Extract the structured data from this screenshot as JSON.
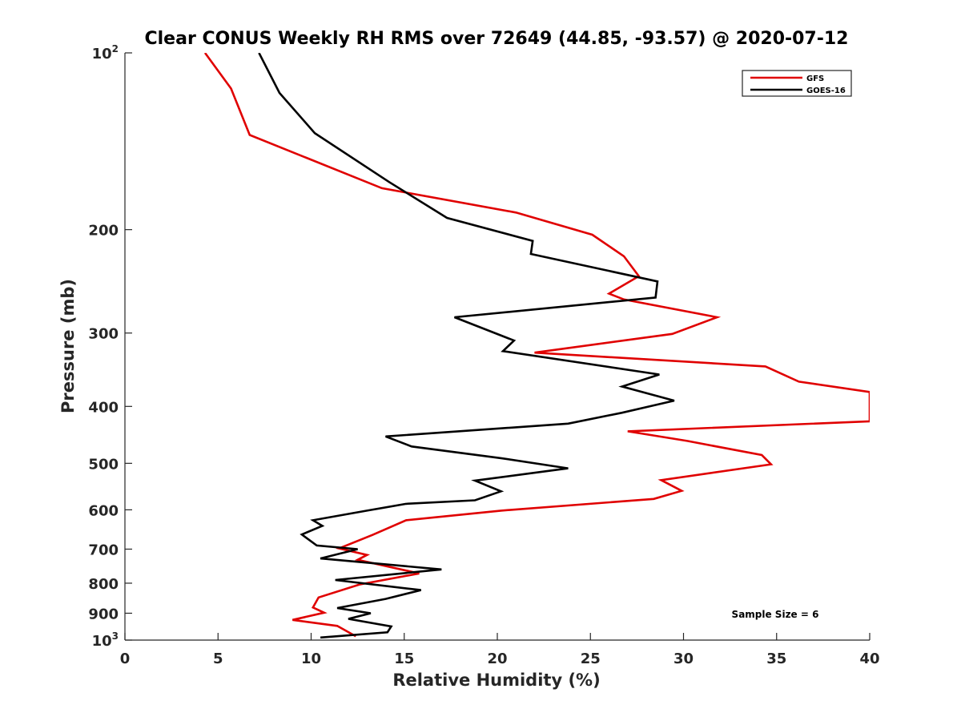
{
  "chart_data": {
    "type": "line",
    "title": "Clear CONUS Weekly RH RMS over 72649 (44.85, -93.57) @ 2020-07-12",
    "xlabel": "Relative Humidity (%)",
    "ylabel": "Pressure (mb)",
    "xlim": [
      0,
      40
    ],
    "ylim": [
      100,
      1000
    ],
    "y_scale": "log",
    "y_reversed": true,
    "x_ticks": [
      "0",
      "5",
      "10",
      "15",
      "20",
      "25",
      "30",
      "35",
      "40"
    ],
    "y_ticks": [
      {
        "value": 100,
        "base": "10",
        "exp": "2"
      },
      {
        "value": 200,
        "base": "200",
        "exp": ""
      },
      {
        "value": 300,
        "base": "300",
        "exp": ""
      },
      {
        "value": 400,
        "base": "400",
        "exp": ""
      },
      {
        "value": 500,
        "base": "500",
        "exp": ""
      },
      {
        "value": 600,
        "base": "600",
        "exp": ""
      },
      {
        "value": 700,
        "base": "700",
        "exp": ""
      },
      {
        "value": 800,
        "base": "800",
        "exp": ""
      },
      {
        "value": 900,
        "base": "900",
        "exp": ""
      },
      {
        "value": 1000,
        "base": "10",
        "exp": "3"
      }
    ],
    "grid": false,
    "legend_position": "top-right",
    "annotation": "Sample Size = 6",
    "series": [
      {
        "name": "GFS",
        "color": "#e00000",
        "points": [
          [
            4.3,
            100
          ],
          [
            5.7,
            115
          ],
          [
            6.7,
            138
          ],
          [
            13.8,
            170
          ],
          [
            21.0,
            187
          ],
          [
            25.1,
            204
          ],
          [
            26.8,
            222
          ],
          [
            27.6,
            240
          ],
          [
            26.0,
            257
          ],
          [
            26.8,
            263
          ],
          [
            31.8,
            282
          ],
          [
            29.4,
            301
          ],
          [
            22.0,
            324
          ],
          [
            34.4,
            342
          ],
          [
            36.2,
            363
          ],
          [
            40.0,
            378
          ],
          [
            40.0,
            424
          ],
          [
            27.0,
            441
          ],
          [
            30.2,
            458
          ],
          [
            34.2,
            484
          ],
          [
            34.7,
            502
          ],
          [
            28.8,
            534
          ],
          [
            29.9,
            557
          ],
          [
            28.4,
            575
          ],
          [
            20.2,
            602
          ],
          [
            15.1,
            625
          ],
          [
            13.3,
            662
          ],
          [
            11.5,
            698
          ],
          [
            13.0,
            716
          ],
          [
            12.5,
            730
          ],
          [
            15.8,
            770
          ],
          [
            12.6,
            804
          ],
          [
            10.4,
            846
          ],
          [
            10.1,
            880
          ],
          [
            10.7,
            898
          ],
          [
            9.0,
            924
          ],
          [
            11.4,
            946
          ],
          [
            12.4,
            985
          ]
        ]
      },
      {
        "name": "GOES-16",
        "color": "#000000",
        "points": [
          [
            7.2,
            100
          ],
          [
            8.3,
            117
          ],
          [
            10.2,
            137
          ],
          [
            14.2,
            166
          ],
          [
            17.3,
            191
          ],
          [
            21.9,
            209
          ],
          [
            21.8,
            220
          ],
          [
            28.6,
            245
          ],
          [
            28.5,
            261
          ],
          [
            17.7,
            282
          ],
          [
            20.9,
            309
          ],
          [
            20.3,
            322
          ],
          [
            28.7,
            353
          ],
          [
            26.7,
            370
          ],
          [
            29.5,
            391
          ],
          [
            26.7,
            410
          ],
          [
            23.8,
            428
          ],
          [
            14.0,
            450
          ],
          [
            15.4,
            468
          ],
          [
            20.2,
            490
          ],
          [
            23.8,
            510
          ],
          [
            18.8,
            535
          ],
          [
            20.2,
            558
          ],
          [
            18.8,
            578
          ],
          [
            15.1,
            586
          ],
          [
            13.0,
            602
          ],
          [
            10.1,
            625
          ],
          [
            10.6,
            639
          ],
          [
            9.5,
            661
          ],
          [
            10.3,
            690
          ],
          [
            12.5,
            700
          ],
          [
            10.5,
            726
          ],
          [
            17.0,
            758
          ],
          [
            11.3,
            790
          ],
          [
            15.9,
            822
          ],
          [
            14.0,
            851
          ],
          [
            11.4,
            882
          ],
          [
            13.2,
            900
          ],
          [
            12.0,
            920
          ],
          [
            14.3,
            948
          ],
          [
            14.1,
            970
          ],
          [
            10.5,
            990
          ]
        ]
      }
    ]
  }
}
